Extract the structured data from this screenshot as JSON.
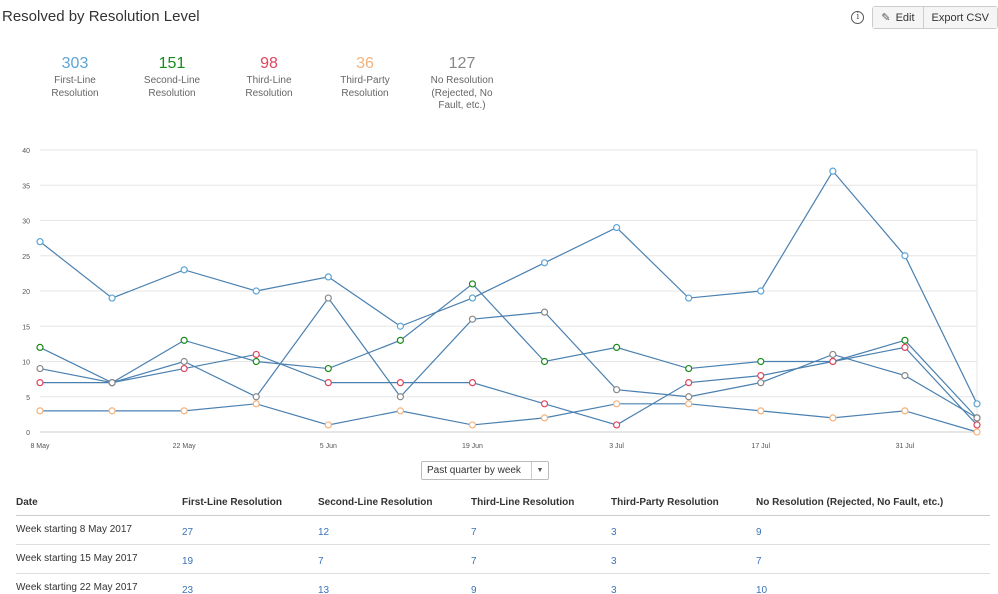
{
  "page_title": "Resolved by Resolution Level",
  "toolbar": {
    "edit_label": "Edit",
    "export_label": "Export CSV",
    "info_glyph": "i"
  },
  "summaries": [
    {
      "count": "303",
      "label_lines": [
        "First-Line",
        "Resolution"
      ],
      "color": "#5ba4d6"
    },
    {
      "count": "151",
      "label_lines": [
        "Second-Line",
        "Resolution"
      ],
      "color": "#1a8a1a"
    },
    {
      "count": "98",
      "label_lines": [
        "Third-Line",
        "Resolution"
      ],
      "color": "#e0445e"
    },
    {
      "count": "36",
      "label_lines": [
        "Third-Party",
        "Resolution"
      ],
      "color": "#f4b27c"
    },
    {
      "count": "127",
      "label_lines": [
        "No Resolution",
        "(Rejected, No",
        "Fault, etc.)"
      ],
      "color": "#888888"
    }
  ],
  "range_select": {
    "value": "Past quarter by week"
  },
  "chart_data": {
    "type": "line",
    "x": [
      "8 May",
      "15 May",
      "22 May",
      "29 May",
      "5 Jun",
      "12 Jun",
      "19 Jun",
      "26 Jun",
      "3 Jul",
      "10 Jul",
      "17 Jul",
      "24 Jul",
      "31 Jul",
      "7 Aug"
    ],
    "x_tick_labels": [
      "8 May",
      "22 May",
      "5 Jun",
      "19 Jun",
      "3 Jul",
      "17 Jul",
      "31 Jul"
    ],
    "y_ticks": [
      0,
      5,
      10,
      15,
      20,
      25,
      30,
      35,
      40
    ],
    "ylim": [
      0,
      40
    ],
    "grid": true,
    "line_color": "#4a80b0",
    "series": [
      {
        "name": "First-Line Resolution",
        "marker_color": "#5ba4d6",
        "values": [
          27,
          19,
          23,
          20,
          22,
          15,
          19,
          24,
          29,
          19,
          20,
          37,
          25,
          4
        ]
      },
      {
        "name": "Second-Line Resolution",
        "marker_color": "#1a8a1a",
        "values": [
          12,
          7,
          13,
          10,
          9,
          13,
          21,
          10,
          12,
          9,
          10,
          10,
          13,
          2
        ]
      },
      {
        "name": "Third-Line Resolution",
        "marker_color": "#e0445e",
        "values": [
          7,
          7,
          9,
          11,
          7,
          7,
          7,
          4,
          1,
          7,
          8,
          10,
          12,
          1
        ]
      },
      {
        "name": "Third-Party Resolution",
        "marker_color": "#f4b27c",
        "values": [
          3,
          3,
          3,
          4,
          1,
          3,
          1,
          2,
          4,
          4,
          3,
          2,
          3,
          0
        ]
      },
      {
        "name": "No Resolution (Rejected, No Fault, etc.)",
        "marker_color": "#888888",
        "values": [
          9,
          7,
          10,
          5,
          19,
          5,
          16,
          17,
          6,
          5,
          7,
          11,
          8,
          2
        ]
      }
    ]
  },
  "table": {
    "headers": [
      "Date",
      "First-Line Resolution",
      "Second-Line Resolution",
      "Third-Line Resolution",
      "Third-Party Resolution",
      "No Resolution (Rejected, No Fault, etc.)"
    ],
    "rows": [
      [
        "Week starting 8 May 2017",
        "27",
        "12",
        "7",
        "3",
        "9"
      ],
      [
        "Week starting 15 May 2017",
        "19",
        "7",
        "7",
        "3",
        "7"
      ],
      [
        "Week starting 22 May 2017",
        "23",
        "13",
        "9",
        "3",
        "10"
      ]
    ]
  }
}
